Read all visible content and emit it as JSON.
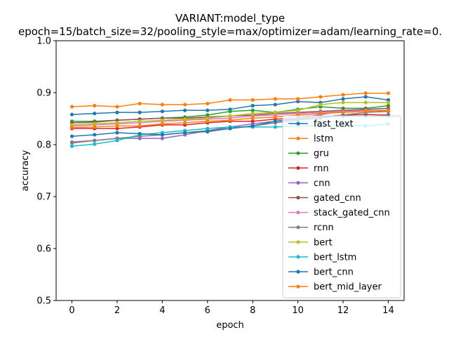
{
  "chart_data": {
    "type": "line",
    "title": "VARIANT:model_type",
    "subtitle": "epoch=15/batch_size=32/pooling_style=max/optimizer=adam/learning_rate=0.",
    "xlabel": "epoch",
    "ylabel": "accuracy",
    "xlim": [
      -0.7,
      14.7
    ],
    "ylim": [
      0.5,
      1.0
    ],
    "xticks": [
      0,
      2,
      4,
      6,
      8,
      10,
      12,
      14
    ],
    "yticks": [
      0.5,
      0.6,
      0.7,
      0.8,
      0.9,
      1.0
    ],
    "ytick_labels": [
      "0.5",
      "0.6",
      "0.7",
      "0.8",
      "0.9",
      "1.0"
    ],
    "grid": false,
    "legend_position": "bottom-right",
    "x": [
      0,
      1,
      2,
      3,
      4,
      5,
      6,
      7,
      8,
      9,
      10,
      11,
      12,
      13,
      14
    ],
    "series": [
      {
        "name": "fast_text",
        "color": "#1f77b4",
        "values": [
          0.858,
          0.86,
          0.862,
          0.862,
          0.864,
          0.866,
          0.866,
          0.868,
          0.875,
          0.877,
          0.883,
          0.881,
          0.888,
          0.892,
          0.886
        ]
      },
      {
        "name": "lstm",
        "color": "#ff7f0e",
        "values": [
          0.873,
          0.875,
          0.873,
          0.879,
          0.877,
          0.877,
          0.879,
          0.886,
          0.886,
          0.888,
          0.888,
          0.892,
          0.896,
          0.899,
          0.899
        ]
      },
      {
        "name": "gru",
        "color": "#2ca02c",
        "values": [
          0.845,
          0.845,
          0.847,
          0.849,
          0.851,
          0.853,
          0.857,
          0.864,
          0.866,
          0.862,
          0.868,
          0.873,
          0.87,
          0.87,
          0.875
        ]
      },
      {
        "name": "rnn",
        "color": "#d62728",
        "values": [
          0.831,
          0.831,
          0.831,
          0.834,
          0.838,
          0.838,
          0.842,
          0.845,
          0.845,
          0.849,
          0.851,
          0.853,
          0.857,
          0.858,
          0.857
        ]
      },
      {
        "name": "cnn",
        "color": "#9467bd",
        "values": [
          0.805,
          0.808,
          0.812,
          0.812,
          0.812,
          0.819,
          0.827,
          0.834,
          0.84,
          0.845,
          0.851,
          0.858,
          0.864,
          0.866,
          0.864
        ]
      },
      {
        "name": "gated_cnn",
        "color": "#8c564b",
        "values": [
          0.842,
          0.843,
          0.847,
          0.849,
          0.851,
          0.851,
          0.853,
          0.855,
          0.857,
          0.86,
          0.862,
          0.864,
          0.866,
          0.868,
          0.87
        ]
      },
      {
        "name": "stack_gated_cnn",
        "color": "#e377c2",
        "values": [
          0.836,
          0.838,
          0.84,
          0.842,
          0.845,
          0.847,
          0.849,
          0.851,
          0.855,
          0.857,
          0.86,
          0.862,
          0.864,
          0.866,
          0.866
        ]
      },
      {
        "name": "rcnn",
        "color": "#7f7f7f",
        "values": [
          0.803,
          0.808,
          0.812,
          0.816,
          0.819,
          0.823,
          0.827,
          0.831,
          0.836,
          0.842,
          0.847,
          0.851,
          0.857,
          0.862,
          0.864
        ]
      },
      {
        "name": "bert",
        "color": "#bcbd22",
        "values": [
          0.838,
          0.84,
          0.842,
          0.845,
          0.847,
          0.849,
          0.851,
          0.855,
          0.86,
          0.862,
          0.866,
          0.877,
          0.881,
          0.881,
          0.881
        ]
      },
      {
        "name": "bert_lstm",
        "color": "#17becf",
        "values": [
          0.797,
          0.801,
          0.808,
          0.819,
          0.823,
          0.827,
          0.831,
          0.834,
          0.834,
          0.834,
          0.836,
          0.836,
          0.838,
          0.836,
          0.84
        ]
      },
      {
        "name": "bert_cnn",
        "color": "#1f77b4",
        "values": [
          0.816,
          0.819,
          0.823,
          0.821,
          0.819,
          0.823,
          0.825,
          0.831,
          0.836,
          0.845,
          0.849,
          0.853,
          0.855,
          0.855,
          0.855
        ]
      },
      {
        "name": "bert_mid_layer",
        "color": "#ff7f0e",
        "values": [
          0.833,
          0.834,
          0.836,
          0.836,
          0.84,
          0.842,
          0.845,
          0.847,
          0.851,
          0.853,
          0.857,
          0.86,
          0.862,
          0.864,
          0.866
        ]
      }
    ]
  }
}
